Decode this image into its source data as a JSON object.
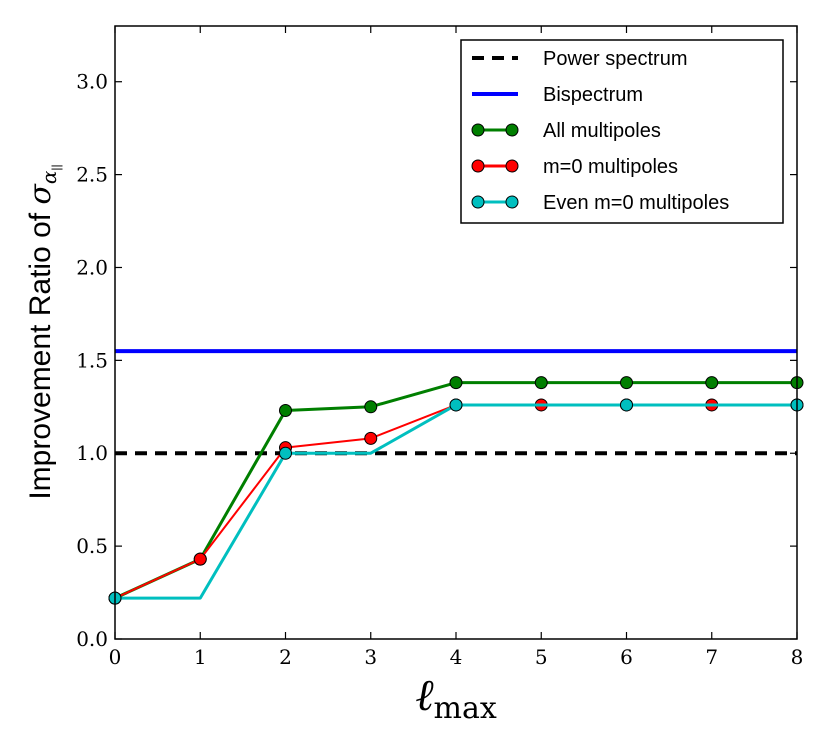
{
  "chart_data": {
    "type": "line",
    "title": "",
    "xlabel": "ℓ",
    "xlabel_subscript": "max",
    "ylabel": "Improvement Ratio of ",
    "ylabel_symbol": "σ",
    "ylabel_subscript": "α",
    "ylabel_subsubscript": "||",
    "xlim": [
      0,
      8
    ],
    "ylim": [
      0,
      3.3
    ],
    "x_ticks": [
      0,
      1,
      2,
      3,
      4,
      5,
      6,
      7,
      8
    ],
    "x_tick_labels": [
      "0",
      "1",
      "2",
      "3",
      "4",
      "5",
      "6",
      "7",
      "8"
    ],
    "y_ticks": [
      0,
      0.5,
      1.0,
      1.5,
      2.0,
      2.5,
      3.0
    ],
    "y_tick_labels": [
      "0.0",
      "0.5",
      "1.0",
      "1.5",
      "2.0",
      "2.5",
      "3.0"
    ],
    "grid": false,
    "legend_position": "top-right",
    "series": [
      {
        "name": "Power spectrum",
        "color": "#000000",
        "style": "dashed",
        "markers": false,
        "x": [
          0,
          8
        ],
        "values": [
          1.0,
          1.0
        ]
      },
      {
        "name": "Bispectrum",
        "color": "#0000ff",
        "style": "solid",
        "markers": false,
        "x": [
          0,
          8
        ],
        "values": [
          1.55,
          1.55
        ]
      },
      {
        "name": "All multipoles",
        "color": "#007f00",
        "style": "solid",
        "markers": true,
        "x": [
          0,
          1,
          2,
          3,
          4,
          5,
          6,
          7,
          8
        ],
        "values": [
          0.22,
          0.43,
          1.23,
          1.25,
          1.38,
          1.38,
          1.38,
          1.38,
          1.38
        ]
      },
      {
        "name": "m=0 multipoles",
        "color": "#ff0000",
        "style": "solid",
        "markers": true,
        "x": [
          0,
          1,
          2,
          3,
          4,
          5,
          6,
          7,
          8
        ],
        "values": [
          0.22,
          0.43,
          1.03,
          1.08,
          1.26,
          1.26,
          1.26,
          1.26,
          1.26
        ]
      },
      {
        "name": "Even m=0 multipoles",
        "color": "#00bfbf",
        "style": "solid",
        "markers": true,
        "x": [
          0,
          2,
          4,
          6,
          8
        ],
        "line_x": [
          0,
          1,
          2,
          3,
          4,
          5,
          6,
          7,
          8
        ],
        "line_values": [
          0.22,
          0.22,
          1.0,
          1.0,
          1.26,
          1.26,
          1.26,
          1.26,
          1.26
        ],
        "values": [
          0.22,
          1.0,
          1.26,
          1.26,
          1.26
        ]
      }
    ]
  }
}
